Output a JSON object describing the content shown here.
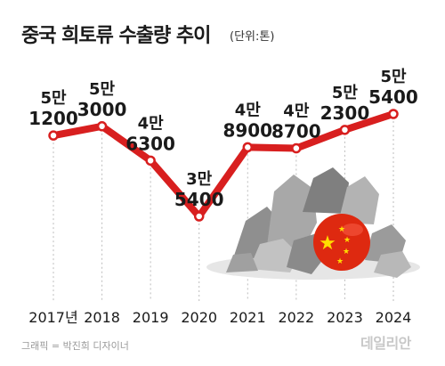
{
  "header": {
    "title": "중국 희토류 수출량 추이",
    "unit": "(단위:톤)"
  },
  "footer": {
    "credit": "그래픽 = 박진희 디자이너",
    "brand": "데일리안"
  },
  "colors": {
    "line": "#d81f1f",
    "marker_fill": "#ffffff",
    "rock": "#9a9a9a",
    "flag_red": "#de2910",
    "flag_star": "#ffde00"
  },
  "chart_data": {
    "type": "line",
    "categories": [
      "2017년",
      "2018",
      "2019",
      "2020",
      "2021",
      "2022",
      "2023",
      "2024"
    ],
    "values": [
      51200,
      53000,
      46300,
      35400,
      48900,
      48700,
      52300,
      55400
    ],
    "value_labels": [
      [
        "5만",
        "1200"
      ],
      [
        "5만",
        "3000"
      ],
      [
        "4만",
        "6300"
      ],
      [
        "3만",
        "5400"
      ],
      [
        "4만",
        "8900"
      ],
      [
        "4만",
        "8700"
      ],
      [
        "5만",
        "2300"
      ],
      [
        "5만",
        "5400"
      ]
    ],
    "title": "중국 희토류 수출량 추이",
    "unit": "단위:톤",
    "grid": false,
    "legend": "none"
  }
}
